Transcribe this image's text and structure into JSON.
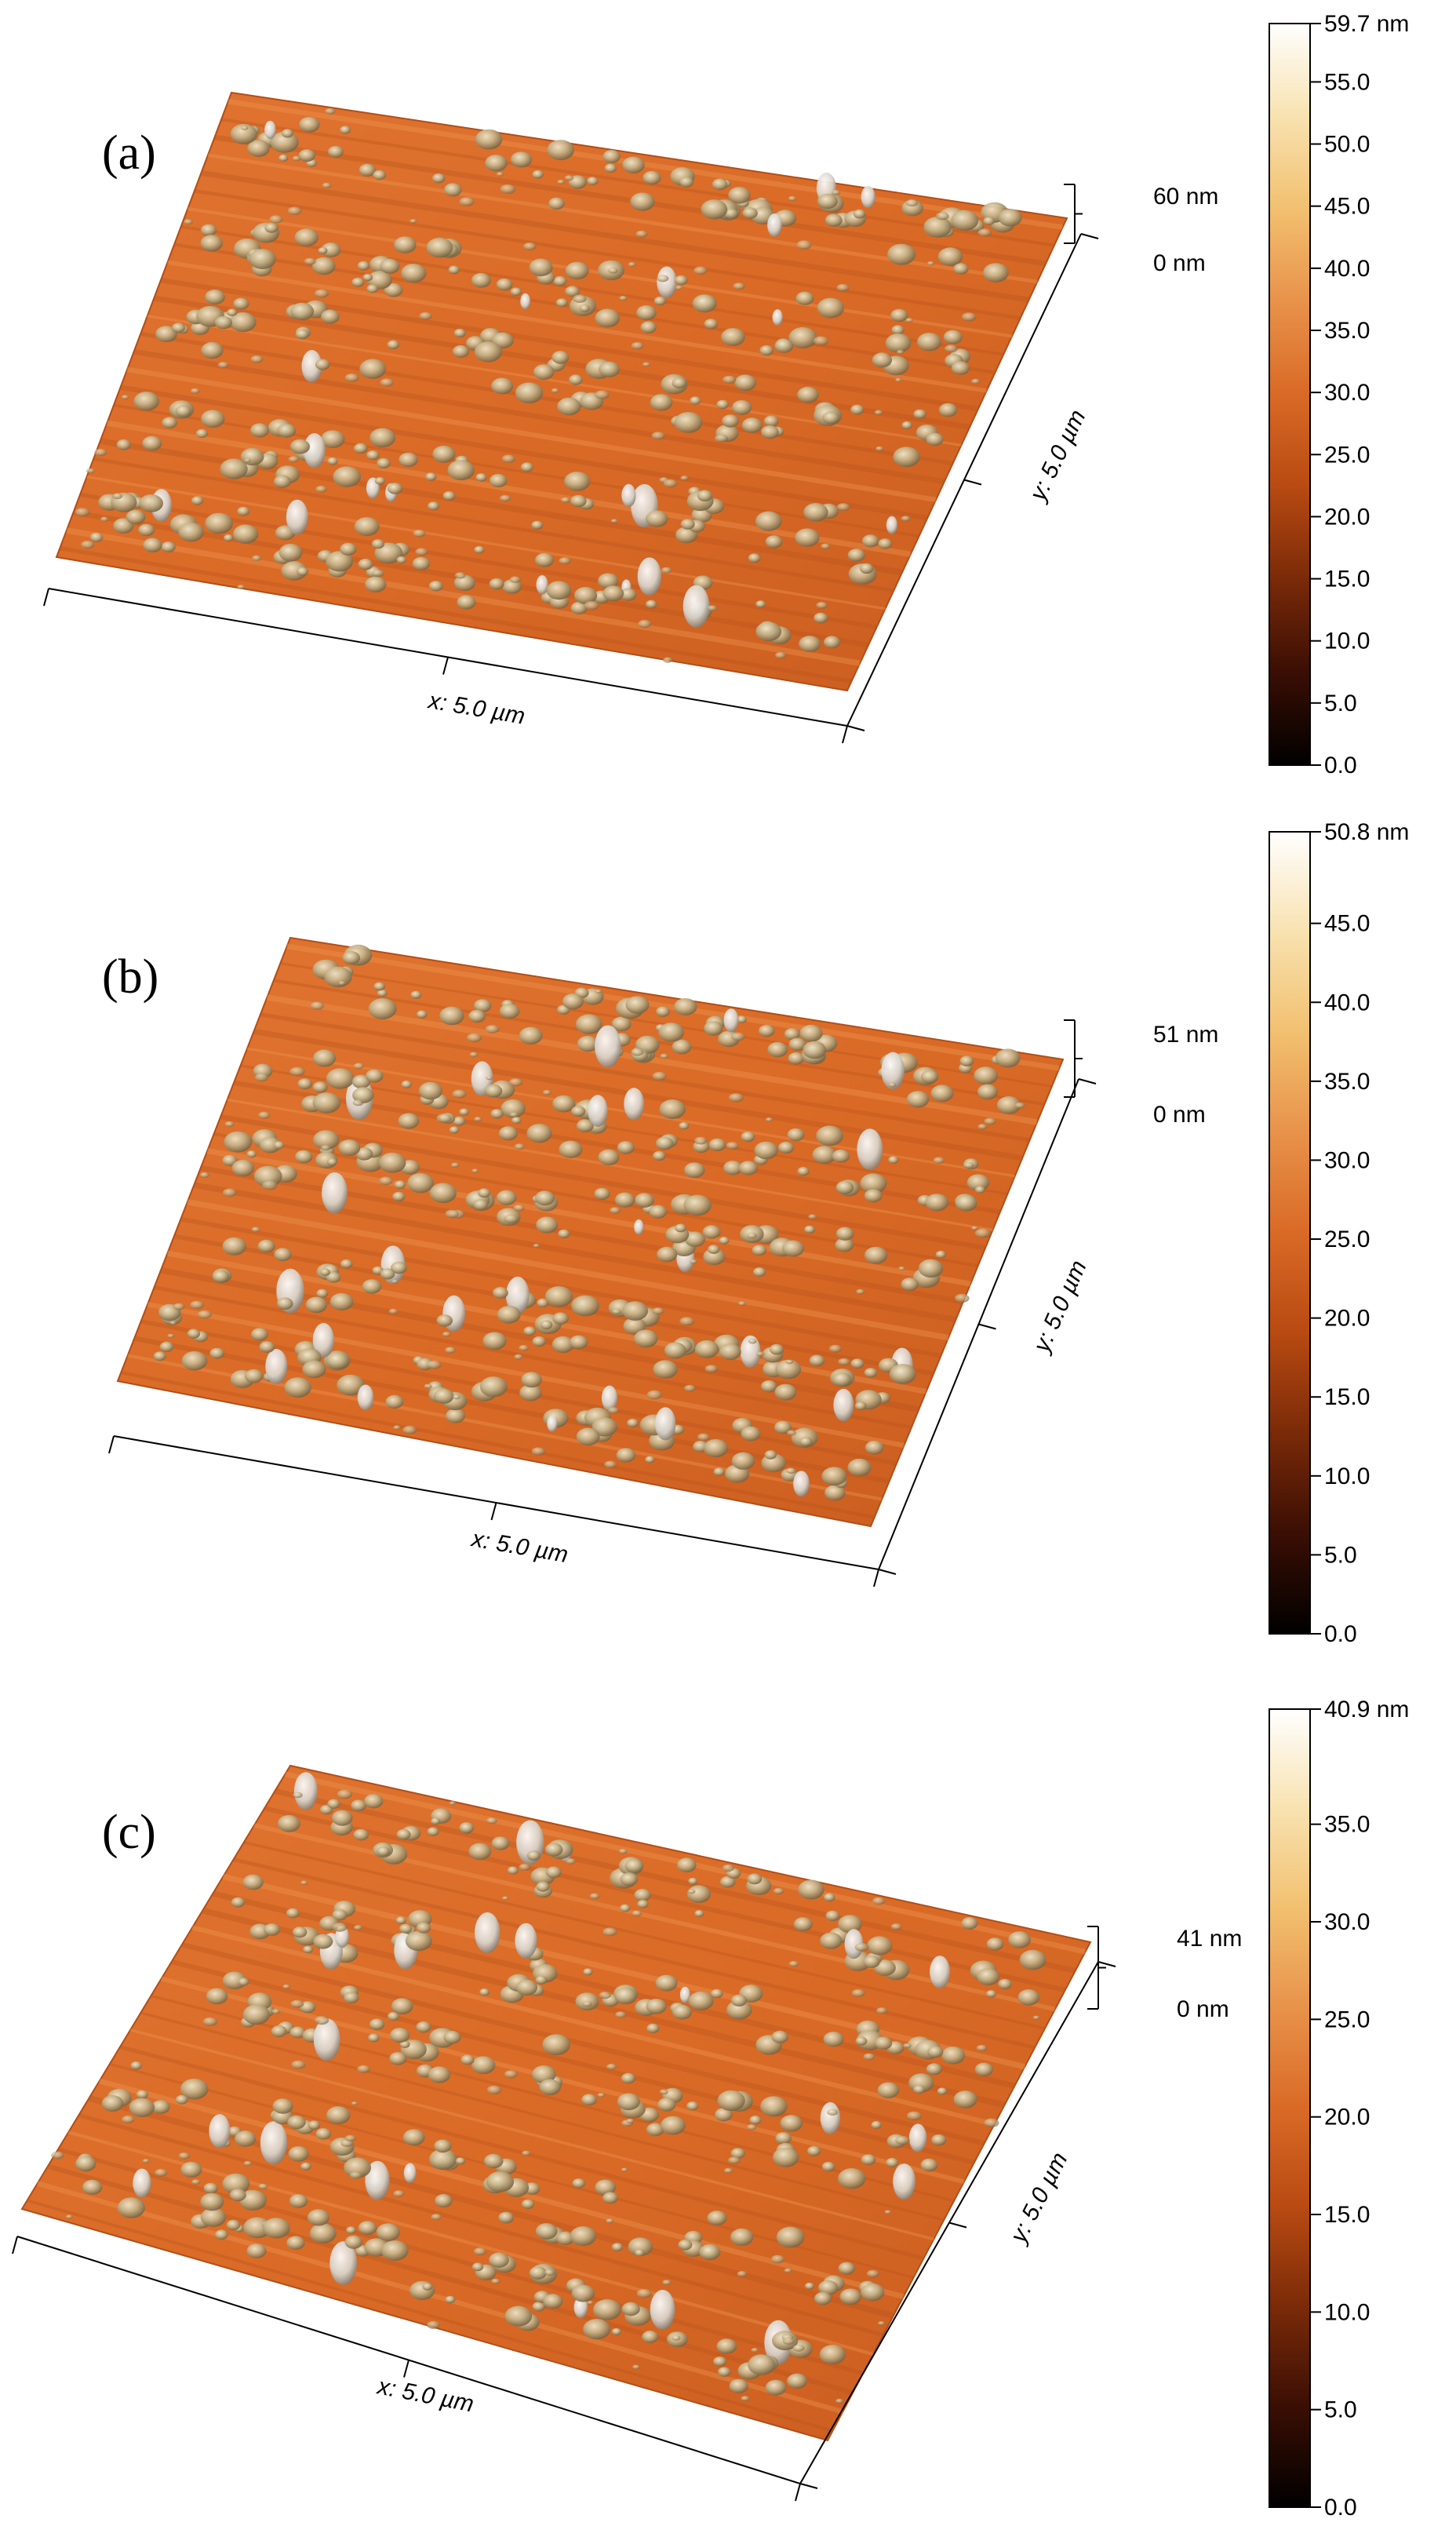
{
  "panels": [
    {
      "id": "a",
      "label": "(a)",
      "x_axis_label": "x: 5.0 µm",
      "y_axis_label": "y: 5.0 µm",
      "z_scale": {
        "top": "60 nm",
        "bottom": "0 nm"
      },
      "colorbar": {
        "max_label": "59.7 nm",
        "ticks": [
          "55.0",
          "50.0",
          "45.0",
          "40.0",
          "35.0",
          "30.0",
          "25.0",
          "20.0",
          "15.0",
          "10.0",
          "5.0",
          "0.0"
        ],
        "tick_values": [
          55,
          50,
          45,
          40,
          35,
          30,
          25,
          20,
          15,
          10,
          5,
          0
        ],
        "min": 0,
        "max": 59.7
      }
    },
    {
      "id": "b",
      "label": "(b)",
      "x_axis_label": "x: 5.0 µm",
      "y_axis_label": "y: 5.0 µm",
      "z_scale": {
        "top": "51 nm",
        "bottom": "0 nm"
      },
      "colorbar": {
        "max_label": "50.8 nm",
        "ticks": [
          "45.0",
          "40.0",
          "35.0",
          "30.0",
          "25.0",
          "20.0",
          "15.0",
          "10.0",
          "5.0",
          "0.0"
        ],
        "tick_values": [
          45,
          40,
          35,
          30,
          25,
          20,
          15,
          10,
          5,
          0
        ],
        "min": 0,
        "max": 50.8
      }
    },
    {
      "id": "c",
      "label": "(c)",
      "x_axis_label": "x: 5.0 µm",
      "y_axis_label": "y: 5.0 µm",
      "z_scale": {
        "top": "41 nm",
        "bottom": "0 nm"
      },
      "colorbar": {
        "max_label": "40.9 nm",
        "ticks": [
          "35.0",
          "30.0",
          "25.0",
          "20.0",
          "15.0",
          "10.0",
          "5.0",
          "0.0"
        ],
        "tick_values": [
          35,
          30,
          25,
          20,
          15,
          10,
          5,
          0
        ],
        "min": 0,
        "max": 40.9
      }
    }
  ],
  "colors": {
    "surface_base": "#d96a26",
    "surface_dark": "#b9501a",
    "grain_light": "#c8b48a",
    "grain_dark": "#6e5a3a",
    "colormap": [
      "#000000",
      "#3a0e04",
      "#7a2a08",
      "#b84a12",
      "#d96a26",
      "#e8924a",
      "#f2c070",
      "#f8e2b0",
      "#ffffff"
    ]
  }
}
